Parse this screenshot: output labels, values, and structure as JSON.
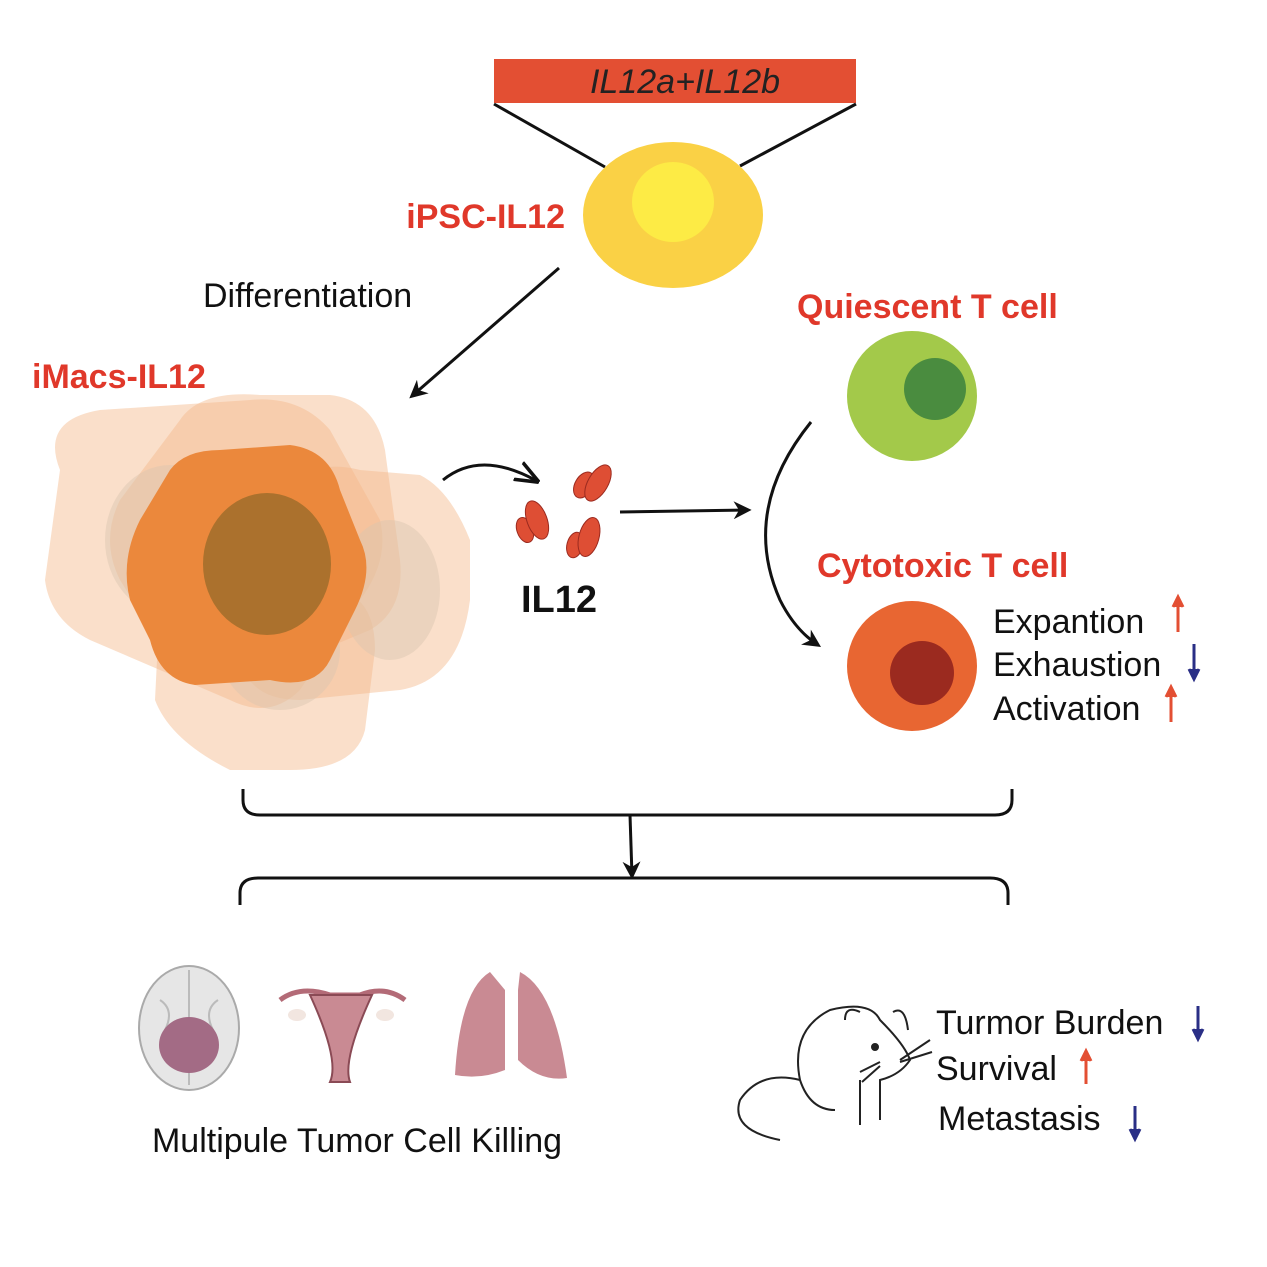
{
  "gene_construct": {
    "label": "IL12a+IL12b",
    "color": "#e34f33"
  },
  "ipsc": {
    "label": "iPSC-IL12",
    "color": "#fad145",
    "nucleus_color": "#fdeb45"
  },
  "differentiation_label": "Differentiation",
  "imacs": {
    "label": "iMacs-IL12",
    "color": "#eb883c",
    "nucleus_color": "#ab712d"
  },
  "cytokine": {
    "label": "IL12",
    "color": "#de4e34"
  },
  "quiescent_t_cell": {
    "label": "Quiescent T cell",
    "color": "#a3c94a",
    "nucleus_color": "#4a8c3f"
  },
  "cytotoxic_t_cell": {
    "label": "Cytotoxic T cell",
    "color": "#e86632",
    "nucleus_color": "#9b2a1f",
    "effects": [
      {
        "label": "Expantion",
        "direction": "up"
      },
      {
        "label": "Exhaustion",
        "direction": "down"
      },
      {
        "label": "Activation",
        "direction": "up"
      }
    ]
  },
  "organs": [
    "brain-icon",
    "uterus-icon",
    "lungs-icon"
  ],
  "killing_label": "Multipule Tumor Cell Killing",
  "mouse_outcomes": [
    {
      "label": "Turmor Burden",
      "direction": "down"
    },
    {
      "label": "Survival",
      "direction": "up"
    },
    {
      "label": "Metastasis",
      "direction": "down"
    }
  ],
  "colors": {
    "up": "#e34f33",
    "down": "#2a2f86",
    "title_red": "#e0382a"
  }
}
